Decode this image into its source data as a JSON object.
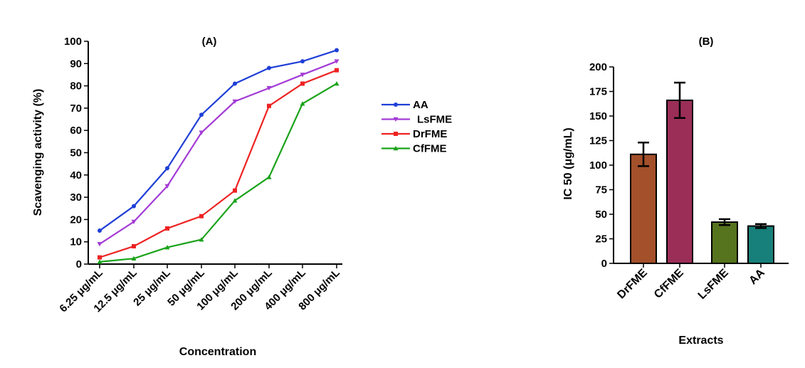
{
  "chart_data": [
    {
      "type": "line",
      "title": "(A)",
      "xlabel": "Concentration",
      "ylabel": "Scavenging activity (%)",
      "categories": [
        "6.25 μg/mL",
        "12.5 μg/mL",
        "25  μg/mL",
        "50  μg/mL",
        "100 μg/mL",
        "200 μg/mL",
        "400 μg/mL",
        "800 μg/mL"
      ],
      "ylim": [
        0,
        100
      ],
      "yticks": [
        0,
        10,
        20,
        30,
        40,
        50,
        60,
        70,
        80,
        90,
        100
      ],
      "legend_position": "right",
      "series": [
        {
          "name": "AA",
          "color": "#1f3fd6",
          "marker": "circle",
          "values": [
            15,
            26,
            43,
            67,
            81,
            88,
            91,
            96
          ]
        },
        {
          "name": "LsFME",
          "color": "#a43bd6",
          "marker": "triangle-down",
          "values": [
            9,
            19,
            35,
            59,
            73,
            79,
            85,
            91
          ]
        },
        {
          "name": "DrFME",
          "color": "#ee2222",
          "marker": "square",
          "values": [
            3,
            8,
            16,
            21.5,
            33,
            71,
            81,
            87
          ]
        },
        {
          "name": "CfFME",
          "color": "#1aa31a",
          "marker": "triangle-up",
          "values": [
            1,
            2.5,
            7.5,
            11,
            28.5,
            39,
            72,
            81
          ]
        }
      ]
    },
    {
      "type": "bar",
      "title": "(B)",
      "xlabel": "Extracts",
      "ylabel": "IC 50 (μg/mL)",
      "categories": [
        "DrFME",
        "CfFME",
        "LsFME",
        "AA"
      ],
      "values": [
        111,
        166,
        42,
        38
      ],
      "errors": [
        12,
        18,
        3,
        2
      ],
      "colors": [
        "#a3502b",
        "#9b2e57",
        "#56731e",
        "#17807a"
      ],
      "ylim": [
        0,
        200
      ],
      "yticks": [
        0,
        25,
        50,
        75,
        100,
        125,
        150,
        175,
        200
      ]
    }
  ]
}
